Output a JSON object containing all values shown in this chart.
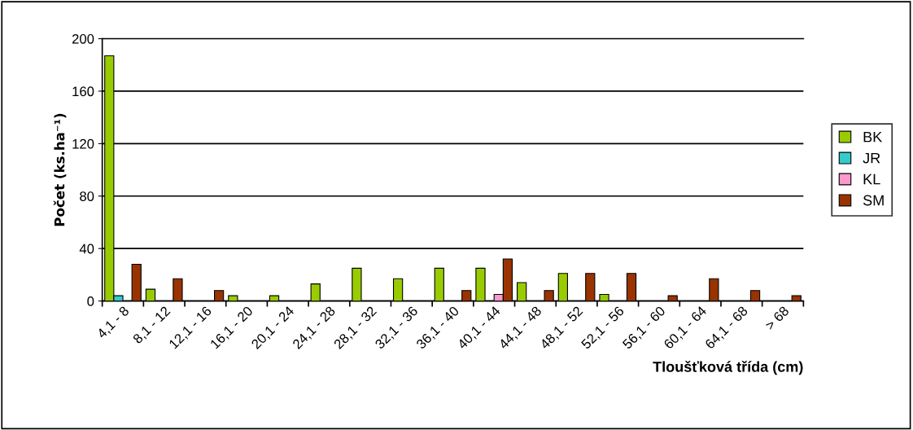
{
  "chart_data": {
    "type": "bar",
    "xlabel": "Tloušťková třída (cm)",
    "ylabel": "Počet (ks.ha⁻¹)",
    "categories": [
      "4,1 - 8",
      "8,1 - 12",
      "12,1 - 16",
      "16,1 - 20",
      "20,1 - 24",
      "24,1 - 28",
      "28,1 - 32",
      "32,1 - 36",
      "36,1 - 40",
      "40,1 - 44",
      "44,1 - 48",
      "48,1 - 52",
      "52,1 - 56",
      "56,1 - 60",
      "60,1 - 64",
      "64,1 - 68",
      "> 68"
    ],
    "series": [
      {
        "name": "BK",
        "color": "#99cc00",
        "values": [
          187,
          9,
          null,
          4,
          4,
          13,
          25,
          17,
          25,
          25,
          14,
          21,
          5,
          null,
          null,
          null,
          null
        ]
      },
      {
        "name": "JR",
        "color": "#33cccc",
        "values": [
          4,
          null,
          null,
          null,
          null,
          null,
          null,
          null,
          null,
          null,
          null,
          null,
          null,
          null,
          null,
          null,
          null
        ]
      },
      {
        "name": "KL",
        "color": "#ff99cc",
        "values": [
          null,
          null,
          null,
          null,
          null,
          null,
          null,
          null,
          null,
          5,
          null,
          null,
          null,
          null,
          null,
          null,
          null
        ]
      },
      {
        "name": "SM",
        "color": "#993300",
        "values": [
          28,
          17,
          8,
          null,
          null,
          null,
          null,
          null,
          8,
          32,
          8,
          21,
          21,
          4,
          17,
          8,
          4
        ]
      }
    ],
    "ylim": [
      0,
      200
    ],
    "yticks": [
      0,
      40,
      80,
      120,
      160,
      200
    ],
    "grid": "y",
    "legend": "right"
  }
}
